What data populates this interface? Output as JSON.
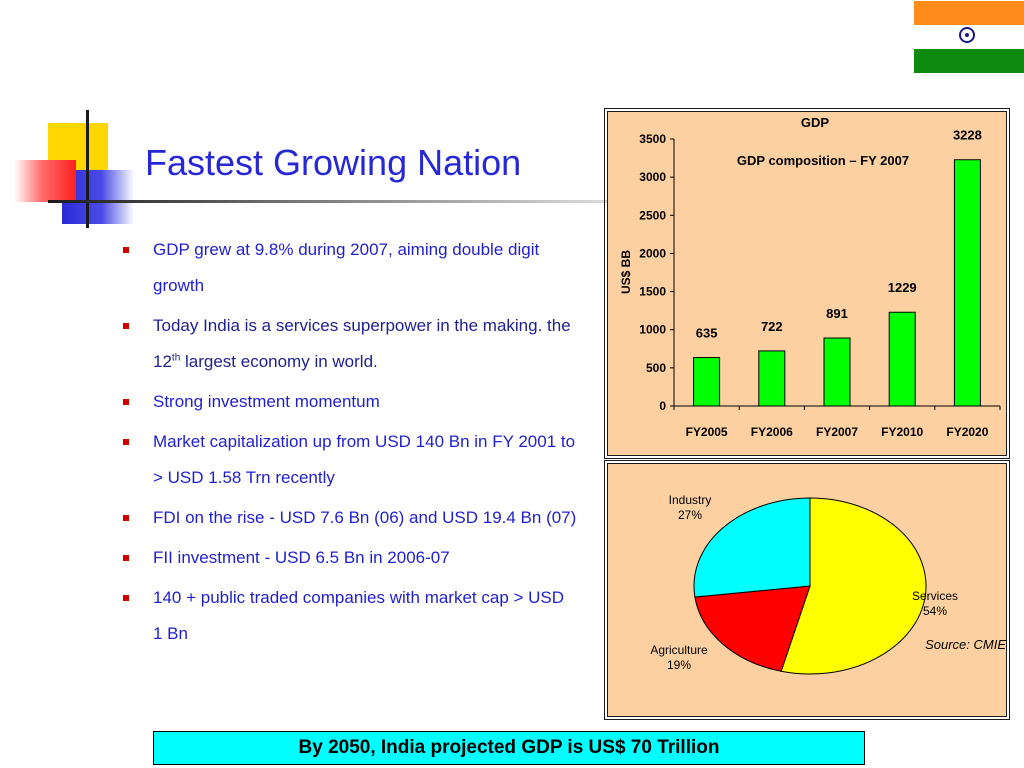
{
  "slide": {
    "title": "Fastest Growing Nation",
    "bullets": [
      {
        "text": "GDP grew at 9.8% during 2007, aiming double digit growth",
        "style": "blue"
      },
      {
        "text": "Today India is a services superpower in the making. the 12th largest economy in world.",
        "style": "dark"
      },
      {
        "text": "Strong investment momentum",
        "style": "blue"
      },
      {
        "text": "Market capitalization up from USD 140 Bn in FY 2001 to > USD 1.58 Trn recently",
        "style": "blue"
      },
      {
        "text": "FDI on the rise - USD 7.6 Bn (06) and USD 19.4 Bn (07)",
        "style": "blue"
      },
      {
        "text": "FII investment - USD 6.5 Bn in 2006-07",
        "style": "blue"
      },
      {
        "text": "140 + public traded companies with market cap > USD 1 Bn",
        "style": "blue"
      }
    ],
    "bullet_parts": {
      "b2_pre": "Today India is a services superpower in the making. the 12",
      "b2_sup": "th",
      "b2_post": " largest economy in world."
    },
    "footer": "By 2050, India projected GDP is US$ 70 Trillion",
    "flag_colors": {
      "saffron": "#ff8c1a",
      "white": "#ffffff",
      "green": "#0e8a0e",
      "chakra": "#1a1a80"
    },
    "colors": {
      "accent_blue": "#2727d6",
      "bullet_red": "#cc0000",
      "panel_bg": "#fcd0a0",
      "footer_bg": "#00ffff"
    }
  },
  "chart_data": [
    {
      "type": "bar",
      "title": "GDP",
      "ylabel": "US$ BB",
      "categories": [
        "FY2005",
        "FY2006",
        "FY2007",
        "FY2010",
        "FY2020"
      ],
      "values": [
        635,
        722,
        891,
        1229,
        3228
      ],
      "ylim": [
        0,
        3500
      ],
      "yticks": [
        0,
        500,
        1000,
        1500,
        2000,
        2500,
        3000,
        3500
      ],
      "bar_color": "#00ff00",
      "grid": false
    },
    {
      "type": "pie",
      "title": "GDP composition – FY 2007",
      "slices": [
        {
          "label": "Services",
          "pct": "54%",
          "value": 54,
          "color": "#ffff00"
        },
        {
          "label": "Agriculture",
          "pct": "19%",
          "value": 19,
          "color": "#ff0000"
        },
        {
          "label": "Industry",
          "pct": "27%",
          "value": 27,
          "color": "#00ffff"
        }
      ],
      "source": "Source: CMIE"
    }
  ]
}
